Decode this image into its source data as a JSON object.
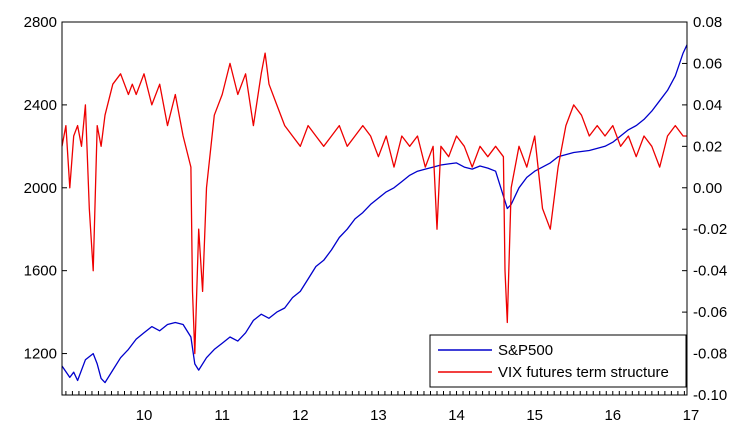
{
  "chart_data": {
    "type": "line",
    "title": "",
    "xlabel": "",
    "ylabel": "",
    "y2label": "",
    "x_ticks": [
      "10",
      "11",
      "12",
      "13",
      "14",
      "15",
      "16",
      "17"
    ],
    "x_range": [
      2009.45,
      2017.45
    ],
    "ylim_left": [
      1000,
      2800
    ],
    "yticks_left": [
      "1200",
      "1600",
      "2000",
      "2400",
      "2800"
    ],
    "ylim_right": [
      -0.1,
      0.08
    ],
    "yticks_right": [
      "-0.10",
      "-0.08",
      "-0.06",
      "-0.04",
      "-0.02",
      "0.00",
      "0.02",
      "0.04",
      "0.06",
      "0.08"
    ],
    "grid": false,
    "legend_position": "bottom-right",
    "series": [
      {
        "name": "S&P500",
        "axis": "left",
        "color": "#0000cc",
        "x": [
          2009.45,
          2009.55,
          2009.6,
          2009.65,
          2009.75,
          2009.85,
          2009.9,
          2009.95,
          2010.0,
          2010.1,
          2010.2,
          2010.3,
          2010.4,
          2010.5,
          2010.6,
          2010.7,
          2010.8,
          2010.9,
          2011.0,
          2011.1,
          2011.15,
          2011.2,
          2011.3,
          2011.4,
          2011.5,
          2011.6,
          2011.7,
          2011.8,
          2011.9,
          2012.0,
          2012.1,
          2012.2,
          2012.3,
          2012.4,
          2012.5,
          2012.6,
          2012.7,
          2012.8,
          2012.9,
          2013.0,
          2013.1,
          2013.2,
          2013.3,
          2013.4,
          2013.5,
          2013.6,
          2013.7,
          2013.8,
          2013.9,
          2014.0,
          2014.1,
          2014.2,
          2014.3,
          2014.4,
          2014.5,
          2014.6,
          2014.7,
          2014.8,
          2014.9,
          2015.0,
          2015.1,
          2015.15,
          2015.2,
          2015.3,
          2015.4,
          2015.5,
          2015.6,
          2015.7,
          2015.8,
          2015.9,
          2016.0,
          2016.1,
          2016.2,
          2016.3,
          2016.4,
          2016.5,
          2016.6,
          2016.7,
          2016.8,
          2016.9,
          2017.0,
          2017.1,
          2017.2,
          2017.3,
          2017.4,
          2017.45
        ],
        "values": [
          1140,
          1085,
          1110,
          1070,
          1170,
          1200,
          1150,
          1080,
          1060,
          1120,
          1180,
          1220,
          1270,
          1300,
          1330,
          1310,
          1340,
          1350,
          1340,
          1280,
          1150,
          1120,
          1180,
          1220,
          1250,
          1280,
          1260,
          1300,
          1360,
          1390,
          1370,
          1400,
          1420,
          1470,
          1500,
          1560,
          1620,
          1650,
          1700,
          1760,
          1800,
          1850,
          1880,
          1920,
          1950,
          1980,
          2000,
          2030,
          2060,
          2080,
          2090,
          2100,
          2110,
          2115,
          2120,
          2100,
          2090,
          2105,
          2095,
          2080,
          1960,
          1900,
          1920,
          2000,
          2050,
          2080,
          2100,
          2120,
          2150,
          2160,
          2170,
          2175,
          2180,
          2190,
          2200,
          2220,
          2250,
          2280,
          2300,
          2330,
          2370,
          2420,
          2470,
          2540,
          2650,
          2690
        ]
      },
      {
        "name": "VIX futures term structure",
        "axis": "right",
        "color": "#ee0000",
        "x": [
          2009.45,
          2009.5,
          2009.55,
          2009.6,
          2009.65,
          2009.7,
          2009.75,
          2009.8,
          2009.85,
          2009.9,
          2009.95,
          2010.0,
          2010.1,
          2010.2,
          2010.3,
          2010.35,
          2010.4,
          2010.5,
          2010.6,
          2010.7,
          2010.8,
          2010.9,
          2011.0,
          2011.1,
          2011.12,
          2011.15,
          2011.2,
          2011.25,
          2011.3,
          2011.4,
          2011.5,
          2011.6,
          2011.7,
          2011.8,
          2011.9,
          2012.0,
          2012.05,
          2012.1,
          2012.2,
          2012.3,
          2012.4,
          2012.5,
          2012.6,
          2012.7,
          2012.8,
          2012.9,
          2013.0,
          2013.1,
          2013.2,
          2013.3,
          2013.4,
          2013.5,
          2013.6,
          2013.7,
          2013.8,
          2013.9,
          2014.0,
          2014.1,
          2014.2,
          2014.25,
          2014.3,
          2014.4,
          2014.5,
          2014.6,
          2014.7,
          2014.8,
          2014.9,
          2015.0,
          2015.1,
          2015.12,
          2015.15,
          2015.2,
          2015.3,
          2015.4,
          2015.5,
          2015.6,
          2015.7,
          2015.8,
          2015.9,
          2016.0,
          2016.1,
          2016.2,
          2016.3,
          2016.4,
          2016.5,
          2016.6,
          2016.7,
          2016.8,
          2016.9,
          2017.0,
          2017.1,
          2017.2,
          2017.3,
          2017.4,
          2017.45
        ],
        "values": [
          0.02,
          0.03,
          0.0,
          0.025,
          0.03,
          0.02,
          0.04,
          -0.01,
          -0.04,
          0.03,
          0.02,
          0.035,
          0.05,
          0.055,
          0.045,
          0.05,
          0.045,
          0.055,
          0.04,
          0.05,
          0.03,
          0.045,
          0.025,
          0.01,
          -0.05,
          -0.08,
          -0.02,
          -0.05,
          0.0,
          0.035,
          0.045,
          0.06,
          0.045,
          0.055,
          0.03,
          0.055,
          0.065,
          0.05,
          0.04,
          0.03,
          0.025,
          0.02,
          0.03,
          0.025,
          0.02,
          0.025,
          0.03,
          0.02,
          0.025,
          0.03,
          0.025,
          0.015,
          0.025,
          0.01,
          0.025,
          0.02,
          0.025,
          0.01,
          0.02,
          -0.02,
          0.02,
          0.015,
          0.025,
          0.02,
          0.01,
          0.02,
          0.015,
          0.02,
          0.015,
          -0.04,
          -0.065,
          0.0,
          0.02,
          0.01,
          0.025,
          -0.01,
          -0.02,
          0.01,
          0.03,
          0.04,
          0.035,
          0.025,
          0.03,
          0.025,
          0.03,
          0.02,
          0.025,
          0.015,
          0.025,
          0.02,
          0.01,
          0.025,
          0.03,
          0.025,
          0.025
        ]
      }
    ]
  }
}
